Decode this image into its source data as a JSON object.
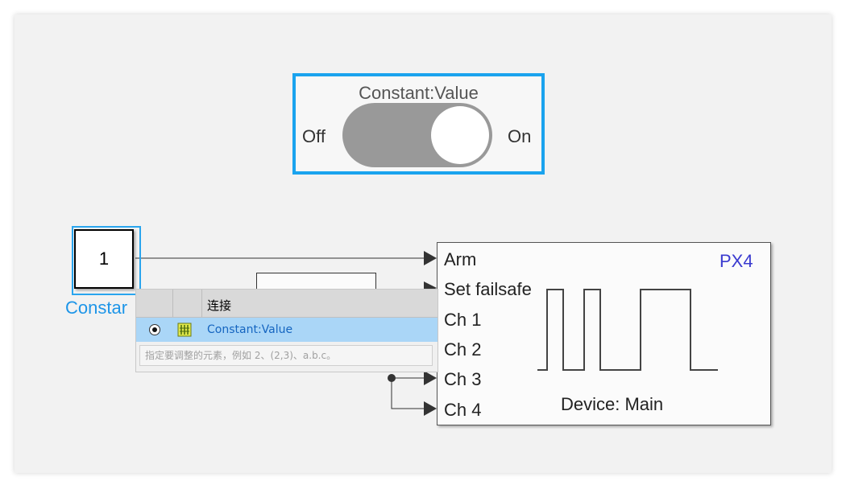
{
  "toggle": {
    "title": "Constant:Value",
    "off_label": "Off",
    "on_label": "On",
    "state": "on",
    "accent": "#1aa3ee"
  },
  "constant_block": {
    "value": "1",
    "name": "Constar"
  },
  "px4_block": {
    "title": "PX4",
    "device": "Device: Main",
    "ports": [
      "Arm",
      "Set failsafe",
      "Ch 1",
      "Ch 2",
      "Ch 3",
      "Ch 4"
    ]
  },
  "popup": {
    "header_label": "连接",
    "row_label": "Constant:Value",
    "input_placeholder": "指定要调整的元素，例如 2、(2,3)、a.b.c。"
  },
  "icons": {
    "radio": "radio-selected-icon",
    "signal": "signal-element-icon"
  }
}
